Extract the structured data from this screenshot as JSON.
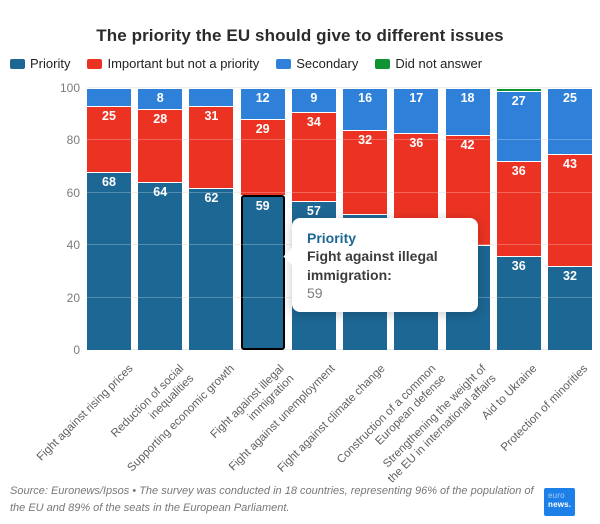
{
  "title": "The priority the EU should give to different issues",
  "legend": [
    {
      "label": "Priority",
      "color": "#1d6795"
    },
    {
      "label": "Important but not a priority",
      "color": "#ec3323"
    },
    {
      "label": "Secondary",
      "color": "#2e80d9"
    },
    {
      "label": "Did not answer",
      "color": "#0f9433"
    }
  ],
  "chart_data": {
    "type": "bar",
    "stacked": true,
    "title": "The priority the EU should give to different issues",
    "ylim": [
      0,
      100
    ],
    "yticks": [
      0,
      20,
      40,
      60,
      80,
      100
    ],
    "grid": true,
    "legend_position": "top-left",
    "categories": [
      "Fight against rising prices",
      "Reduction of social\ninequalities",
      "Supporting economic growth",
      "Fight against illegal\nimmigration",
      "Fight against unemployment",
      "Fight against climate change",
      "Construction of a common\nEuropean defense",
      "Strengthening the weight of\nthe EU in international affairs",
      "Aid to Ukraine",
      "Protection of minorities"
    ],
    "series": [
      {
        "name": "Priority",
        "color": "#1d6795",
        "values": [
          68,
          64,
          62,
          59,
          57,
          52,
          47,
          40,
          36,
          32
        ],
        "labels": [
          "68",
          "64",
          "62",
          "59",
          "57",
          "52",
          "",
          "",
          "36",
          "32"
        ]
      },
      {
        "name": "Important but not a priority",
        "color": "#ec3323",
        "values": [
          25,
          28,
          31,
          29,
          34,
          32,
          36,
          42,
          36,
          43
        ],
        "labels": [
          "25",
          "28",
          "31",
          "29",
          "34",
          "32",
          "36",
          "42",
          "36",
          "43"
        ]
      },
      {
        "name": "Secondary",
        "color": "#2e80d9",
        "values": [
          7,
          8,
          7,
          12,
          9,
          16,
          17,
          18,
          27,
          25
        ],
        "labels": [
          "",
          "8",
          "",
          "12",
          "9",
          "16",
          "17",
          "18",
          "27",
          "25"
        ]
      },
      {
        "name": "Did not answer",
        "color": "#0f9433",
        "values": [
          0,
          0,
          0,
          0,
          0,
          0,
          0,
          0,
          1,
          0
        ],
        "labels": [
          "",
          "",
          "",
          "",
          "",
          "",
          "",
          "",
          "",
          ""
        ]
      }
    ],
    "highlight": {
      "bar_index": 3,
      "series_index": 0
    }
  },
  "tooltip": {
    "series": "Priority",
    "category": "Fight against illegal immigration:",
    "value": "59"
  },
  "source_text": "Source: Euronews/Ipsos • The survey was conducted in 18 countries, representing 96% of the population of the EU and 89% of the seats in the European Parliament.",
  "logo": {
    "line1": "euro",
    "line2": "news."
  }
}
